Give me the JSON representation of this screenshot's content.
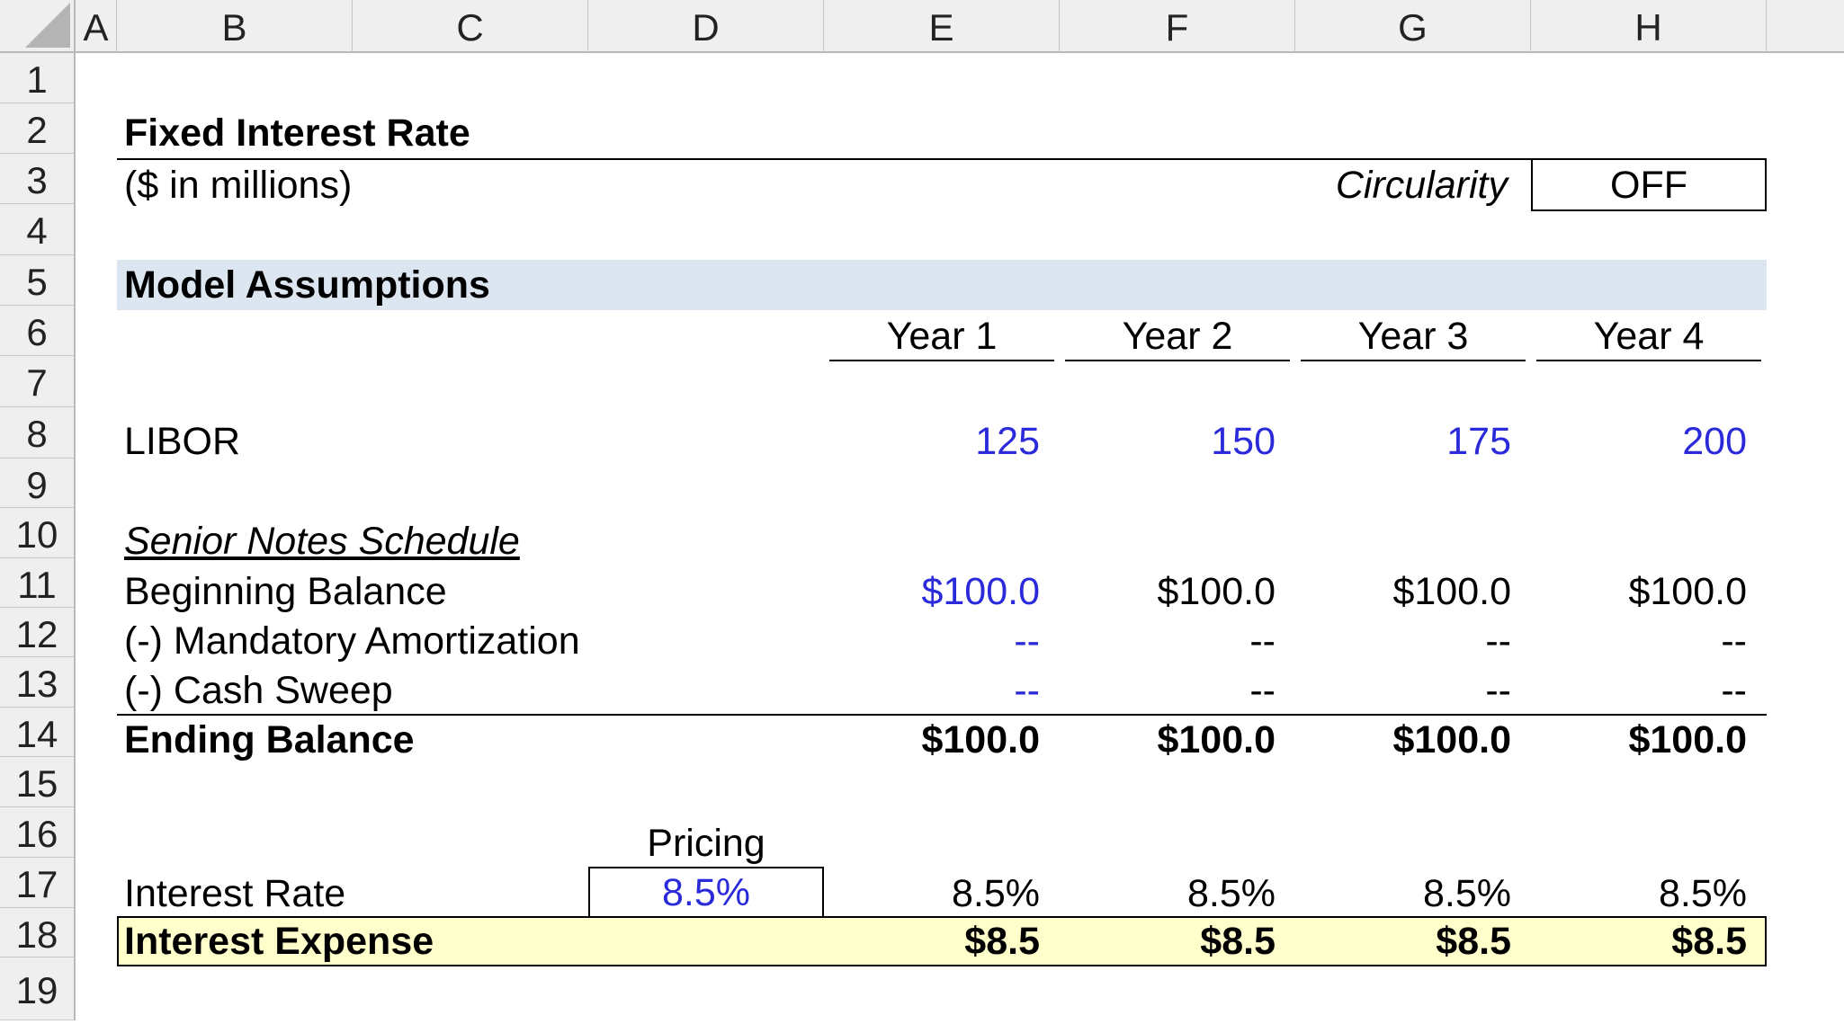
{
  "columns": [
    "A",
    "B",
    "C",
    "D",
    "E",
    "F",
    "G",
    "H"
  ],
  "rows": [
    "1",
    "2",
    "3",
    "4",
    "5",
    "6",
    "7",
    "8",
    "9",
    "10",
    "11",
    "12",
    "13",
    "14",
    "15",
    "16",
    "17",
    "18",
    "19"
  ],
  "title": "Fixed Interest Rate",
  "subtitle": "($ in millions)",
  "circularity": {
    "label": "Circularity",
    "value": "OFF"
  },
  "section_title": "Model Assumptions",
  "years": [
    "Year 1",
    "Year 2",
    "Year 3",
    "Year 4"
  ],
  "libor": {
    "label": "LIBOR",
    "values": [
      "125",
      "150",
      "175",
      "200"
    ]
  },
  "schedule_title": "Senior Notes Schedule",
  "beginning_balance": {
    "label": "Beginning Balance",
    "values": [
      "$100.0",
      "$100.0",
      "$100.0",
      "$100.0"
    ]
  },
  "mandatory_amortization": {
    "label": "(-) Mandatory Amortization",
    "values": [
      "--",
      "--",
      "--",
      "--"
    ]
  },
  "cash_sweep": {
    "label": "(-) Cash Sweep",
    "values": [
      "--",
      "--",
      "--",
      "--"
    ]
  },
  "ending_balance": {
    "label": "Ending Balance",
    "values": [
      "$100.0",
      "$100.0",
      "$100.0",
      "$100.0"
    ]
  },
  "pricing": {
    "label": "Pricing",
    "value": "8.5%"
  },
  "interest_rate": {
    "label": "Interest Rate",
    "values": [
      "8.5%",
      "8.5%",
      "8.5%",
      "8.5%"
    ]
  },
  "interest_expense": {
    "label": "Interest Expense",
    "values": [
      "$8.5",
      "$8.5",
      "$8.5",
      "$8.5"
    ]
  },
  "colors": {
    "input_blue": "#2a2adb",
    "header_band": "#dce6f1",
    "highlight": "#ffffcc",
    "header_gray": "#efefef"
  }
}
